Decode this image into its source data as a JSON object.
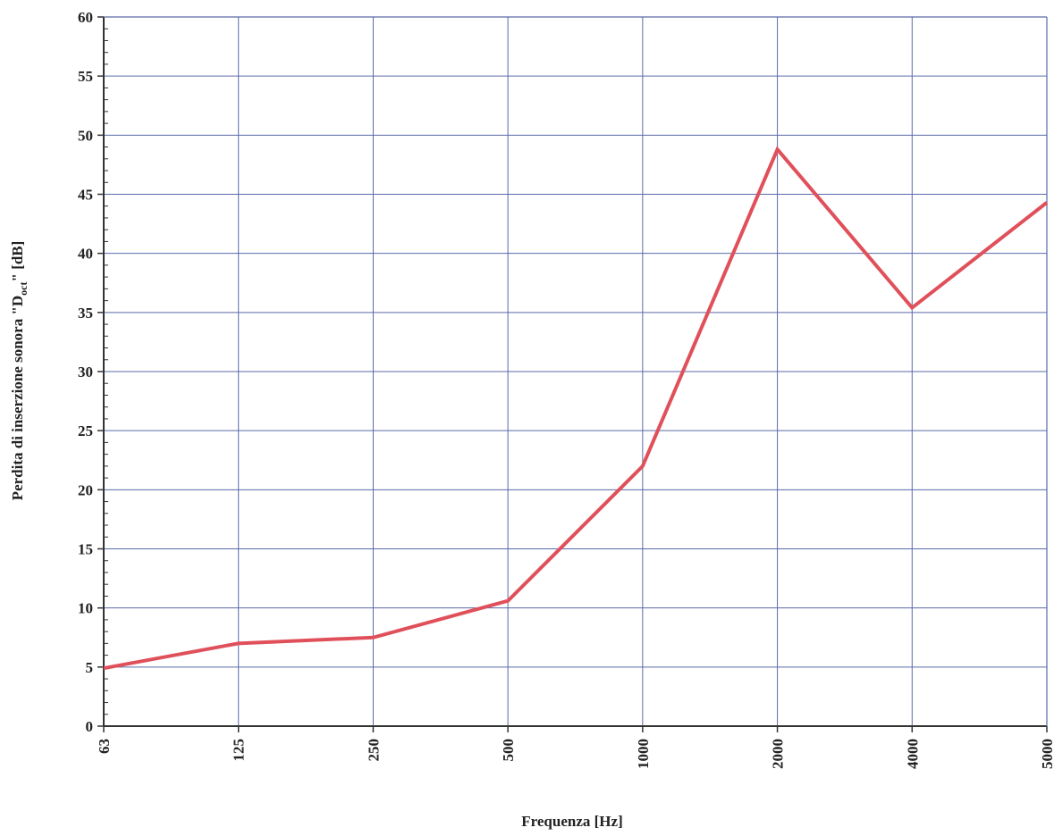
{
  "chart_data": {
    "type": "line",
    "title": "",
    "xlabel": "Frequenza [Hz]",
    "ylabel": {
      "prefix": "Perdita di inserzione sonora \"D",
      "subscript": "oct",
      "suffix": "\" [dB]"
    },
    "x_scale": "categorical",
    "categories": [
      "63",
      "125",
      "250",
      "500",
      "1000",
      "2000",
      "4000",
      "5000"
    ],
    "y_ticks": [
      "0",
      "5",
      "10",
      "15",
      "20",
      "25",
      "30",
      "35",
      "40",
      "45",
      "50",
      "55",
      "60"
    ],
    "ylim": [
      0,
      60
    ],
    "grid": true,
    "legend": "none",
    "series": [
      {
        "values": [
          4.9,
          7.0,
          7.5,
          10.6,
          22.0,
          48.8,
          35.4,
          44.3
        ],
        "color": "#e0505a"
      }
    ]
  },
  "colors": {
    "grid": "#5a6aa8",
    "axis": "#333333",
    "line": "#e0505a"
  }
}
